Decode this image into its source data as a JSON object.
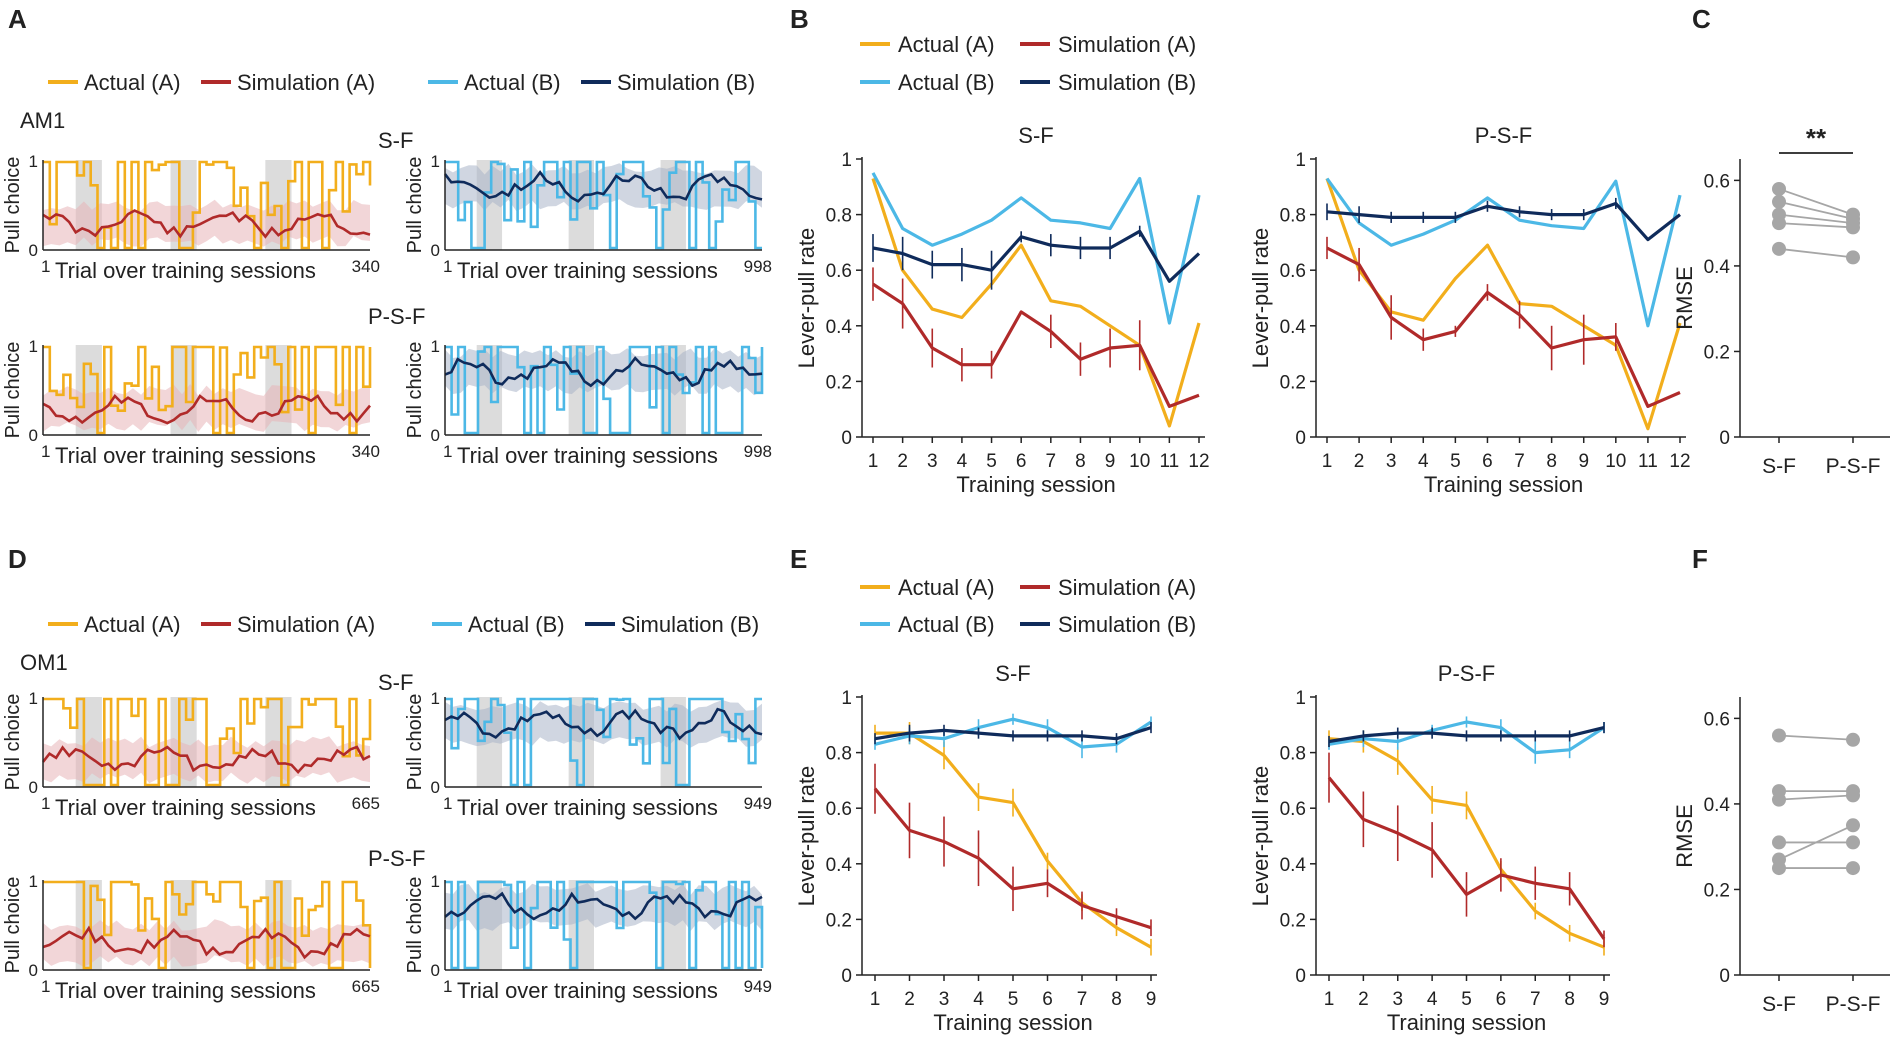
{
  "colors": {
    "actual_a": "#f2ae1c",
    "sim_a": "#b02a2a",
    "actual_b": "#4cb8e6",
    "sim_b": "#0f2b5b",
    "band_a": "#e8b4b8",
    "band_b": "#aab5c8",
    "shade": "#dcdcdc",
    "dots": "#a6a6a6"
  },
  "panel_labels": {
    "A": "A",
    "B": "B",
    "C": "C",
    "D": "D",
    "E": "E",
    "F": "F"
  },
  "legend": {
    "actual_a": "Actual (A)",
    "sim_a": "Simulation (A)",
    "actual_b": "Actual (B)",
    "sim_b": "Simulation (B)"
  },
  "traces_top": {
    "subject": "AM1",
    "row1_label": "S-F",
    "row2_label": "P-S-F",
    "xlabel": "Trial over training sessions",
    "ylabel": "Pull choice",
    "x_start": "1",
    "left_end": "340",
    "right_end": "998",
    "y_ticks": [
      "0",
      "1"
    ]
  },
  "traces_bottom": {
    "subject": "OM1",
    "row1_label": "S-F",
    "row2_label": "P-S-F",
    "xlabel": "Trial over training sessions",
    "ylabel": "Pull choice",
    "x_start": "1",
    "left_end": "665",
    "right_end": "949",
    "y_ticks": [
      "0",
      "1"
    ]
  },
  "chart_data": [
    {
      "id": "B-SF",
      "type": "line",
      "title": "S-F",
      "xlabel": "Training session",
      "ylabel": "Lever-pull rate",
      "categories": [
        "1",
        "2",
        "3",
        "4",
        "5",
        "6",
        "7",
        "8",
        "9",
        "10",
        "11",
        "12"
      ],
      "ylim": [
        0,
        1
      ],
      "yticks": [
        "0",
        "0.2",
        "0.4",
        "0.6",
        "0.8",
        "1"
      ],
      "series": [
        {
          "name": "Actual (A)",
          "values": [
            0.93,
            0.6,
            0.46,
            0.43,
            0.55,
            0.69,
            0.49,
            0.47,
            0.4,
            0.33,
            0.04,
            0.41
          ]
        },
        {
          "name": "Simulation (A)",
          "values": [
            0.55,
            0.48,
            0.32,
            0.26,
            0.26,
            0.45,
            0.38,
            0.28,
            0.32,
            0.33,
            0.11,
            0.15
          ],
          "err": [
            0.06,
            0.09,
            0.07,
            0.06,
            0.05,
            0.0,
            0.06,
            0.06,
            0.07,
            0.09,
            0.0,
            0.0
          ]
        },
        {
          "name": "Actual (B)",
          "values": [
            0.95,
            0.75,
            0.69,
            0.73,
            0.78,
            0.86,
            0.78,
            0.77,
            0.75,
            0.93,
            0.41,
            0.87
          ]
        },
        {
          "name": "Simulation (B)",
          "values": [
            0.68,
            0.66,
            0.62,
            0.62,
            0.6,
            0.72,
            0.69,
            0.68,
            0.68,
            0.74,
            0.56,
            0.66
          ],
          "err": [
            0.05,
            0.06,
            0.05,
            0.06,
            0.07,
            0.02,
            0.04,
            0.04,
            0.04,
            0.02,
            0.0,
            0.0
          ]
        }
      ]
    },
    {
      "id": "B-PSF",
      "type": "line",
      "title": "P-S-F",
      "xlabel": "Training session",
      "ylabel": "Lever-pull rate",
      "categories": [
        "1",
        "2",
        "3",
        "4",
        "5",
        "6",
        "7",
        "8",
        "9",
        "10",
        "11",
        "12"
      ],
      "ylim": [
        0,
        1
      ],
      "yticks": [
        "0",
        "0.2",
        "0.4",
        "0.6",
        "0.8",
        "1"
      ],
      "series": [
        {
          "name": "Actual (A)",
          "values": [
            0.93,
            0.6,
            0.45,
            0.42,
            0.57,
            0.69,
            0.48,
            0.47,
            0.4,
            0.33,
            0.03,
            0.41
          ]
        },
        {
          "name": "Simulation (A)",
          "values": [
            0.68,
            0.62,
            0.43,
            0.35,
            0.38,
            0.52,
            0.44,
            0.32,
            0.35,
            0.36,
            0.11,
            0.16
          ],
          "err": [
            0.04,
            0.06,
            0.08,
            0.04,
            0.02,
            0.03,
            0.05,
            0.08,
            0.09,
            0.05,
            0.0,
            0.0
          ]
        },
        {
          "name": "Actual (B)",
          "values": [
            0.93,
            0.77,
            0.69,
            0.73,
            0.78,
            0.86,
            0.78,
            0.76,
            0.75,
            0.92,
            0.4,
            0.87
          ]
        },
        {
          "name": "Simulation (B)",
          "values": [
            0.81,
            0.8,
            0.79,
            0.79,
            0.79,
            0.83,
            0.81,
            0.8,
            0.8,
            0.84,
            0.71,
            0.8
          ],
          "err": [
            0.03,
            0.03,
            0.02,
            0.02,
            0.02,
            0.02,
            0.02,
            0.02,
            0.02,
            0.02,
            0.0,
            0.0
          ]
        }
      ]
    },
    {
      "id": "C",
      "type": "scatter",
      "title": "",
      "xlabel": "",
      "ylabel": "RMSE",
      "categories": [
        "S-F",
        "P-S-F"
      ],
      "ylim": [
        0,
        0.65
      ],
      "yticks": [
        "0",
        "0.2",
        "0.4",
        "0.6"
      ],
      "significance": "**",
      "pairs": [
        [
          0.58,
          0.52
        ],
        [
          0.55,
          0.51
        ],
        [
          0.52,
          0.5
        ],
        [
          0.5,
          0.49
        ],
        [
          0.44,
          0.42
        ]
      ]
    },
    {
      "id": "E-SF",
      "type": "line",
      "title": "S-F",
      "xlabel": "Training session",
      "ylabel": "Lever-pull rate",
      "categories": [
        "1",
        "2",
        "3",
        "4",
        "5",
        "6",
        "7",
        "8",
        "9"
      ],
      "ylim": [
        0,
        1
      ],
      "yticks": [
        "0",
        "0.2",
        "0.4",
        "0.6",
        "0.8",
        "1"
      ],
      "series": [
        {
          "name": "Actual (A)",
          "values": [
            0.87,
            0.87,
            0.79,
            0.64,
            0.62,
            0.41,
            0.26,
            0.17,
            0.1
          ],
          "err": [
            0.03,
            0.04,
            0.05,
            0.05,
            0.05,
            0.03,
            0.03,
            0.03,
            0.03
          ]
        },
        {
          "name": "Simulation (A)",
          "values": [
            0.67,
            0.52,
            0.48,
            0.42,
            0.31,
            0.33,
            0.25,
            0.21,
            0.17
          ],
          "err": [
            0.09,
            0.1,
            0.09,
            0.1,
            0.08,
            0.05,
            0.05,
            0.03,
            0.03
          ]
        },
        {
          "name": "Actual (B)",
          "values": [
            0.83,
            0.86,
            0.85,
            0.89,
            0.92,
            0.89,
            0.82,
            0.83,
            0.91
          ],
          "err": [
            0.02,
            0.03,
            0.03,
            0.03,
            0.02,
            0.03,
            0.04,
            0.03,
            0.02
          ]
        },
        {
          "name": "Simulation (B)",
          "values": [
            0.85,
            0.87,
            0.88,
            0.87,
            0.86,
            0.86,
            0.86,
            0.85,
            0.89
          ],
          "err": [
            0.02,
            0.03,
            0.02,
            0.02,
            0.02,
            0.02,
            0.02,
            0.02,
            0.02
          ]
        }
      ]
    },
    {
      "id": "E-PSF",
      "type": "line",
      "title": "P-S-F",
      "xlabel": "Training session",
      "ylabel": "Lever-pull rate",
      "categories": [
        "1",
        "2",
        "3",
        "4",
        "5",
        "6",
        "7",
        "8",
        "9"
      ],
      "ylim": [
        0,
        1
      ],
      "yticks": [
        "0",
        "0.2",
        "0.4",
        "0.6",
        "0.8",
        "1"
      ],
      "series": [
        {
          "name": "Actual (A)",
          "values": [
            0.85,
            0.84,
            0.77,
            0.63,
            0.61,
            0.38,
            0.23,
            0.15,
            0.1
          ],
          "err": [
            0.03,
            0.04,
            0.05,
            0.05,
            0.05,
            0.03,
            0.03,
            0.03,
            0.03
          ]
        },
        {
          "name": "Simulation (A)",
          "values": [
            0.71,
            0.56,
            0.51,
            0.45,
            0.29,
            0.36,
            0.33,
            0.31,
            0.13
          ],
          "err": [
            0.09,
            0.1,
            0.1,
            0.1,
            0.08,
            0.06,
            0.06,
            0.06,
            0.03
          ]
        },
        {
          "name": "Actual (B)",
          "values": [
            0.83,
            0.85,
            0.84,
            0.88,
            0.91,
            0.89,
            0.8,
            0.81,
            0.89
          ],
          "err": [
            0.02,
            0.03,
            0.03,
            0.02,
            0.02,
            0.03,
            0.04,
            0.03,
            0.02
          ]
        },
        {
          "name": "Simulation (B)",
          "values": [
            0.84,
            0.86,
            0.87,
            0.87,
            0.86,
            0.86,
            0.86,
            0.86,
            0.89
          ],
          "err": [
            0.02,
            0.02,
            0.02,
            0.02,
            0.02,
            0.02,
            0.02,
            0.02,
            0.02
          ]
        }
      ]
    },
    {
      "id": "F",
      "type": "scatter",
      "title": "",
      "xlabel": "",
      "ylabel": "RMSE",
      "categories": [
        "S-F",
        "P-S-F"
      ],
      "ylim": [
        0,
        0.65
      ],
      "yticks": [
        "0",
        "0.2",
        "0.4",
        "0.6"
      ],
      "significance": "",
      "pairs": [
        [
          0.56,
          0.55
        ],
        [
          0.43,
          0.43
        ],
        [
          0.41,
          0.42
        ],
        [
          0.31,
          0.31
        ],
        [
          0.27,
          0.35
        ],
        [
          0.25,
          0.25
        ]
      ]
    }
  ]
}
